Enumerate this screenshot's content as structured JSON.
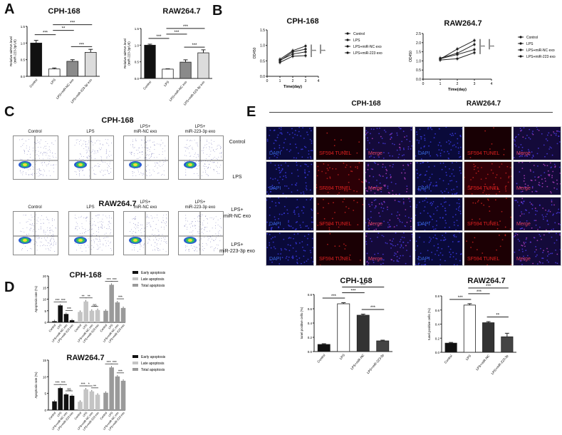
{
  "panels": {
    "A": "A",
    "B": "B",
    "C": "C",
    "D": "D",
    "E": "E"
  },
  "colors": {
    "black": "#111111",
    "white": "#ffffff",
    "gray": "#8a8a8a",
    "light": "#dcdcdc",
    "dapi": "#1a1a9a",
    "tunel": "#5a0a10"
  },
  "panelC": {
    "rows": [
      {
        "title": "CPH-168",
        "plots": [
          {
            "title": "Control"
          },
          {
            "title": "LPS"
          },
          {
            "title": "LPS+\nmiR-NC exo"
          },
          {
            "title": "LPS+\nmiR-223-3p exo"
          }
        ]
      },
      {
        "title": "RAW264.7",
        "plots": [
          {
            "title": "Control"
          },
          {
            "title": "LPS"
          },
          {
            "title": "LPS+\nmiR-NC exo"
          },
          {
            "title": "LPS+\nmiR-223-3p exo"
          }
        ]
      }
    ]
  },
  "panelE": {
    "groups": [
      "CPH-168",
      "RAW264.7"
    ],
    "rows": [
      "Control",
      "LPS",
      "LPS+\nmiR-NC exo",
      "LPS+\nmiR-223-3p exo"
    ],
    "channels": [
      "DAPI",
      "SF594 TUNEL",
      "Merge"
    ]
  },
  "chart_data": [
    {
      "id": "A1",
      "type": "bar",
      "title": "CPH-168",
      "ylabel": "Relative miRNA level\n(miR-223-3p/U6)",
      "ylim": [
        0,
        1.5
      ],
      "yticks": [
        "0.0",
        "0.5",
        "1.0",
        "1.5"
      ],
      "categories": [
        "Control",
        "LPS",
        "LPS+miR-NC exo",
        "LPS+miR-223-3p exo"
      ],
      "values": [
        1.0,
        0.22,
        0.45,
        0.72
      ],
      "errors": [
        0.08,
        0.03,
        0.05,
        0.09
      ],
      "bar_colors": [
        "#111111",
        "#ffffff",
        "#8a8a8a",
        "#dcdcdc"
      ],
      "significance": [
        {
          "from": 0,
          "to": 1,
          "label": "***"
        },
        {
          "from": 1,
          "to": 3,
          "label": "***"
        },
        {
          "from": 1,
          "to": 2,
          "label": "**"
        },
        {
          "from": 2,
          "to": 3,
          "label": "***"
        }
      ]
    },
    {
      "id": "A2",
      "type": "bar",
      "title": "RAW264.7",
      "ylabel": "Relative miRNA level\n(miR-223-3p/U6)",
      "ylim": [
        0,
        1.5
      ],
      "yticks": [
        "0.0",
        "0.5",
        "1.0",
        "1.5"
      ],
      "categories": [
        "Control",
        "LPS",
        "LPS+miR-NC exo",
        "LPS+miR-223-3p exo"
      ],
      "values": [
        1.0,
        0.28,
        0.49,
        0.77
      ],
      "errors": [
        0.03,
        0.01,
        0.07,
        0.09
      ],
      "bar_colors": [
        "#111111",
        "#ffffff",
        "#8a8a8a",
        "#dcdcdc"
      ],
      "significance": [
        {
          "from": 0,
          "to": 1,
          "label": "***"
        },
        {
          "from": 1,
          "to": 3,
          "label": "***"
        },
        {
          "from": 1,
          "to": 2,
          "label": "***"
        },
        {
          "from": 2,
          "to": 3,
          "label": "***"
        }
      ]
    },
    {
      "id": "B1",
      "type": "line",
      "title": "CPH-168",
      "xlabel": "Time(day)",
      "ylabel": "OD450",
      "xlim": [
        0,
        4
      ],
      "ylim": [
        0,
        1.5
      ],
      "xticks": [
        "0",
        "1",
        "2",
        "3",
        "4"
      ],
      "yticks": [
        "0.0",
        "0.5",
        "1.0",
        "1.5"
      ],
      "x": [
        1,
        2,
        3
      ],
      "legend": "right",
      "significance": [
        "***",
        "***"
      ],
      "series": [
        {
          "name": "Control",
          "values": [
            0.55,
            0.83,
            0.98
          ]
        },
        {
          "name": "LPS",
          "values": [
            0.45,
            0.65,
            0.67
          ]
        },
        {
          "name": "LPS+miR-NC exo",
          "values": [
            0.52,
            0.72,
            0.79
          ]
        },
        {
          "name": "LPS+miR-223 exo",
          "values": [
            0.5,
            0.79,
            0.88
          ]
        }
      ]
    },
    {
      "id": "B2",
      "type": "line",
      "title": "RAW264.7",
      "xlabel": "Time(day)",
      "ylabel": "OD450",
      "xlim": [
        0,
        4
      ],
      "ylim": [
        0,
        2.5
      ],
      "xticks": [
        "0",
        "1",
        "2",
        "3",
        "4"
      ],
      "yticks": [
        "0.0",
        "0.5",
        "1.0",
        "1.5",
        "2.0",
        "2.5"
      ],
      "x": [
        1,
        2,
        3
      ],
      "legend": "right",
      "significance": [
        "***",
        "***"
      ],
      "series": [
        {
          "name": "Control",
          "values": [
            1.1,
            1.65,
            2.12
          ]
        },
        {
          "name": "LPS",
          "values": [
            1.05,
            1.12,
            1.45
          ]
        },
        {
          "name": "LPS+miR-NC exo",
          "values": [
            1.12,
            1.35,
            1.62
          ]
        },
        {
          "name": "LPS+miR-223 exo",
          "values": [
            1.15,
            1.42,
            1.9
          ]
        }
      ]
    },
    {
      "id": "D1",
      "type": "bar",
      "title": "CPH-168",
      "ylabel": "Apoptosis rate (%)",
      "ylim": [
        0,
        20
      ],
      "yticks": [
        "0",
        "5",
        "10",
        "15",
        "20"
      ],
      "categories": [
        "Control",
        "LPS",
        "LPS+miR-NC exo",
        "LPS+miR-223 exo"
      ],
      "legend": "right",
      "series": [
        {
          "name": "Early apoptosis",
          "color": "#111111",
          "values": [
            0.5,
            7.3,
            3.6,
            0.9
          ],
          "significance": [
            "***",
            "***",
            "***"
          ]
        },
        {
          "name": "Late apoptosis",
          "color": "#c4c4c4",
          "values": [
            4.5,
            9.0,
            5.0,
            5.3
          ],
          "significance": [
            "**",
            "**",
            "ns"
          ]
        },
        {
          "name": "Total apoptosis",
          "color": "#9a9a9a",
          "values": [
            5.0,
            16.2,
            8.6,
            6.2
          ],
          "significance": [
            "***",
            "***",
            "***"
          ]
        }
      ]
    },
    {
      "id": "D2",
      "type": "bar",
      "title": "RAW264.7",
      "ylabel": "Apoptosis rate (%)",
      "ylim": [
        0,
        15
      ],
      "yticks": [
        "0",
        "5",
        "10",
        "15"
      ],
      "categories": [
        "Control",
        "LPS",
        "LPS+miR-NC exo",
        "LPS+miR-223 exo"
      ],
      "legend": "right",
      "series": [
        {
          "name": "Early apoptosis",
          "color": "#111111",
          "values": [
            2.6,
            6.6,
            4.7,
            4.3
          ],
          "significance": [
            "***",
            "***",
            "ns"
          ]
        },
        {
          "name": "Late apoptosis",
          "color": "#c4c4c4",
          "values": [
            2.5,
            6.2,
            5.6,
            4.6
          ],
          "significance": [
            "***",
            "*",
            "**"
          ]
        },
        {
          "name": "Total apoptosis",
          "color": "#9a9a9a",
          "values": [
            5.2,
            12.8,
            10.1,
            8.8
          ],
          "significance": [
            "***",
            "***",
            "***"
          ]
        }
      ]
    },
    {
      "id": "E1",
      "type": "bar",
      "title": "CPH-168",
      "ylabel": "tunel positive cells (%)",
      "ylim": [
        0,
        0.8
      ],
      "yticks": [
        "0.0",
        "0.2",
        "0.4",
        "0.6",
        "0.8"
      ],
      "categories": [
        "Control",
        "LPS",
        "LPS+miR-NC",
        "LPS+miR-223-3p"
      ],
      "values": [
        0.1,
        0.67,
        0.51,
        0.15
      ],
      "errors": [
        0.01,
        0.015,
        0.015,
        0.01
      ],
      "bar_colors": [
        "#111111",
        "#ffffff",
        "#333333",
        "#444444"
      ],
      "significance": [
        {
          "from": 0,
          "to": 1,
          "label": "***"
        },
        {
          "from": 1,
          "to": 3,
          "label": "***"
        },
        {
          "from": 1,
          "to": 2,
          "label": "***"
        },
        {
          "from": 2,
          "to": 3,
          "label": "***"
        }
      ]
    },
    {
      "id": "E2",
      "type": "bar",
      "title": "RAW264.7",
      "ylabel": "tunel positive cells (%)",
      "ylim": [
        0,
        0.8
      ],
      "yticks": [
        "0.0",
        "0.2",
        "0.4",
        "0.6",
        "0.8"
      ],
      "categories": [
        "Control",
        "LPS",
        "LPS+miR-NC",
        "LPS+miR-223-3p"
      ],
      "values": [
        0.13,
        0.67,
        0.42,
        0.22
      ],
      "errors": [
        0.01,
        0.02,
        0.015,
        0.05
      ],
      "bar_colors": [
        "#111111",
        "#ffffff",
        "#333333",
        "#444444"
      ],
      "significance": [
        {
          "from": 0,
          "to": 1,
          "label": "***"
        },
        {
          "from": 1,
          "to": 3,
          "label": "***"
        },
        {
          "from": 1,
          "to": 2,
          "label": "***"
        },
        {
          "from": 2,
          "to": 3,
          "label": "**"
        }
      ]
    }
  ]
}
